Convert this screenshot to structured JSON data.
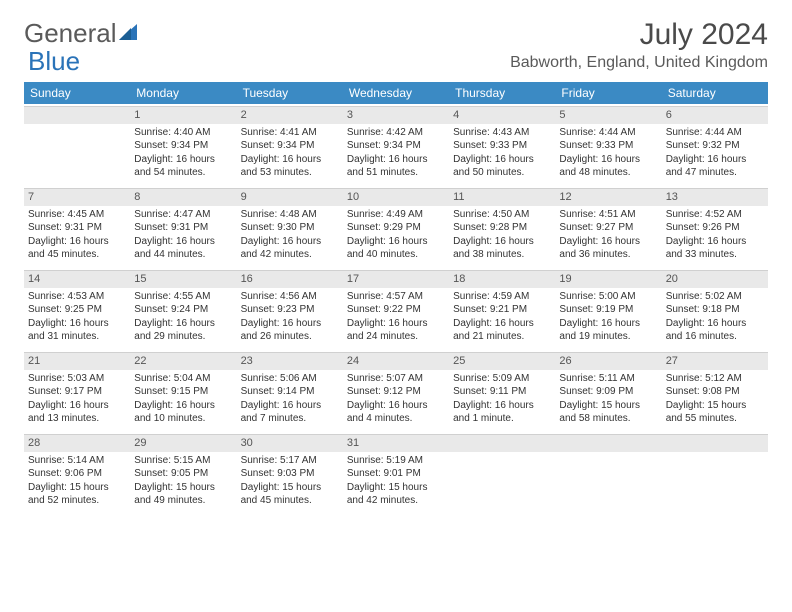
{
  "logo": {
    "text1": "General",
    "text2": "Blue",
    "text_color": "#5a5a5a",
    "accent_color": "#2a73b8"
  },
  "title": "July 2024",
  "location": "Babworth, England, United Kingdom",
  "header_bg": "#3b8ac4",
  "header_text_color": "#ffffff",
  "daynum_bg": "#e9e9e9",
  "day_names": [
    "Sunday",
    "Monday",
    "Tuesday",
    "Wednesday",
    "Thursday",
    "Friday",
    "Saturday"
  ],
  "weeks": [
    [
      {
        "blank": true
      },
      {
        "n": "1",
        "sunrise": "Sunrise: 4:40 AM",
        "sunset": "Sunset: 9:34 PM",
        "d1": "Daylight: 16 hours",
        "d2": "and 54 minutes."
      },
      {
        "n": "2",
        "sunrise": "Sunrise: 4:41 AM",
        "sunset": "Sunset: 9:34 PM",
        "d1": "Daylight: 16 hours",
        "d2": "and 53 minutes."
      },
      {
        "n": "3",
        "sunrise": "Sunrise: 4:42 AM",
        "sunset": "Sunset: 9:34 PM",
        "d1": "Daylight: 16 hours",
        "d2": "and 51 minutes."
      },
      {
        "n": "4",
        "sunrise": "Sunrise: 4:43 AM",
        "sunset": "Sunset: 9:33 PM",
        "d1": "Daylight: 16 hours",
        "d2": "and 50 minutes."
      },
      {
        "n": "5",
        "sunrise": "Sunrise: 4:44 AM",
        "sunset": "Sunset: 9:33 PM",
        "d1": "Daylight: 16 hours",
        "d2": "and 48 minutes."
      },
      {
        "n": "6",
        "sunrise": "Sunrise: 4:44 AM",
        "sunset": "Sunset: 9:32 PM",
        "d1": "Daylight: 16 hours",
        "d2": "and 47 minutes."
      }
    ],
    [
      {
        "n": "7",
        "sunrise": "Sunrise: 4:45 AM",
        "sunset": "Sunset: 9:31 PM",
        "d1": "Daylight: 16 hours",
        "d2": "and 45 minutes."
      },
      {
        "n": "8",
        "sunrise": "Sunrise: 4:47 AM",
        "sunset": "Sunset: 9:31 PM",
        "d1": "Daylight: 16 hours",
        "d2": "and 44 minutes."
      },
      {
        "n": "9",
        "sunrise": "Sunrise: 4:48 AM",
        "sunset": "Sunset: 9:30 PM",
        "d1": "Daylight: 16 hours",
        "d2": "and 42 minutes."
      },
      {
        "n": "10",
        "sunrise": "Sunrise: 4:49 AM",
        "sunset": "Sunset: 9:29 PM",
        "d1": "Daylight: 16 hours",
        "d2": "and 40 minutes."
      },
      {
        "n": "11",
        "sunrise": "Sunrise: 4:50 AM",
        "sunset": "Sunset: 9:28 PM",
        "d1": "Daylight: 16 hours",
        "d2": "and 38 minutes."
      },
      {
        "n": "12",
        "sunrise": "Sunrise: 4:51 AM",
        "sunset": "Sunset: 9:27 PM",
        "d1": "Daylight: 16 hours",
        "d2": "and 36 minutes."
      },
      {
        "n": "13",
        "sunrise": "Sunrise: 4:52 AM",
        "sunset": "Sunset: 9:26 PM",
        "d1": "Daylight: 16 hours",
        "d2": "and 33 minutes."
      }
    ],
    [
      {
        "n": "14",
        "sunrise": "Sunrise: 4:53 AM",
        "sunset": "Sunset: 9:25 PM",
        "d1": "Daylight: 16 hours",
        "d2": "and 31 minutes."
      },
      {
        "n": "15",
        "sunrise": "Sunrise: 4:55 AM",
        "sunset": "Sunset: 9:24 PM",
        "d1": "Daylight: 16 hours",
        "d2": "and 29 minutes."
      },
      {
        "n": "16",
        "sunrise": "Sunrise: 4:56 AM",
        "sunset": "Sunset: 9:23 PM",
        "d1": "Daylight: 16 hours",
        "d2": "and 26 minutes."
      },
      {
        "n": "17",
        "sunrise": "Sunrise: 4:57 AM",
        "sunset": "Sunset: 9:22 PM",
        "d1": "Daylight: 16 hours",
        "d2": "and 24 minutes."
      },
      {
        "n": "18",
        "sunrise": "Sunrise: 4:59 AM",
        "sunset": "Sunset: 9:21 PM",
        "d1": "Daylight: 16 hours",
        "d2": "and 21 minutes."
      },
      {
        "n": "19",
        "sunrise": "Sunrise: 5:00 AM",
        "sunset": "Sunset: 9:19 PM",
        "d1": "Daylight: 16 hours",
        "d2": "and 19 minutes."
      },
      {
        "n": "20",
        "sunrise": "Sunrise: 5:02 AM",
        "sunset": "Sunset: 9:18 PM",
        "d1": "Daylight: 16 hours",
        "d2": "and 16 minutes."
      }
    ],
    [
      {
        "n": "21",
        "sunrise": "Sunrise: 5:03 AM",
        "sunset": "Sunset: 9:17 PM",
        "d1": "Daylight: 16 hours",
        "d2": "and 13 minutes."
      },
      {
        "n": "22",
        "sunrise": "Sunrise: 5:04 AM",
        "sunset": "Sunset: 9:15 PM",
        "d1": "Daylight: 16 hours",
        "d2": "and 10 minutes."
      },
      {
        "n": "23",
        "sunrise": "Sunrise: 5:06 AM",
        "sunset": "Sunset: 9:14 PM",
        "d1": "Daylight: 16 hours",
        "d2": "and 7 minutes."
      },
      {
        "n": "24",
        "sunrise": "Sunrise: 5:07 AM",
        "sunset": "Sunset: 9:12 PM",
        "d1": "Daylight: 16 hours",
        "d2": "and 4 minutes."
      },
      {
        "n": "25",
        "sunrise": "Sunrise: 5:09 AM",
        "sunset": "Sunset: 9:11 PM",
        "d1": "Daylight: 16 hours",
        "d2": "and 1 minute."
      },
      {
        "n": "26",
        "sunrise": "Sunrise: 5:11 AM",
        "sunset": "Sunset: 9:09 PM",
        "d1": "Daylight: 15 hours",
        "d2": "and 58 minutes."
      },
      {
        "n": "27",
        "sunrise": "Sunrise: 5:12 AM",
        "sunset": "Sunset: 9:08 PM",
        "d1": "Daylight: 15 hours",
        "d2": "and 55 minutes."
      }
    ],
    [
      {
        "n": "28",
        "sunrise": "Sunrise: 5:14 AM",
        "sunset": "Sunset: 9:06 PM",
        "d1": "Daylight: 15 hours",
        "d2": "and 52 minutes."
      },
      {
        "n": "29",
        "sunrise": "Sunrise: 5:15 AM",
        "sunset": "Sunset: 9:05 PM",
        "d1": "Daylight: 15 hours",
        "d2": "and 49 minutes."
      },
      {
        "n": "30",
        "sunrise": "Sunrise: 5:17 AM",
        "sunset": "Sunset: 9:03 PM",
        "d1": "Daylight: 15 hours",
        "d2": "and 45 minutes."
      },
      {
        "n": "31",
        "sunrise": "Sunrise: 5:19 AM",
        "sunset": "Sunset: 9:01 PM",
        "d1": "Daylight: 15 hours",
        "d2": "and 42 minutes."
      },
      {
        "blank": true
      },
      {
        "blank": true
      },
      {
        "blank": true
      }
    ]
  ]
}
